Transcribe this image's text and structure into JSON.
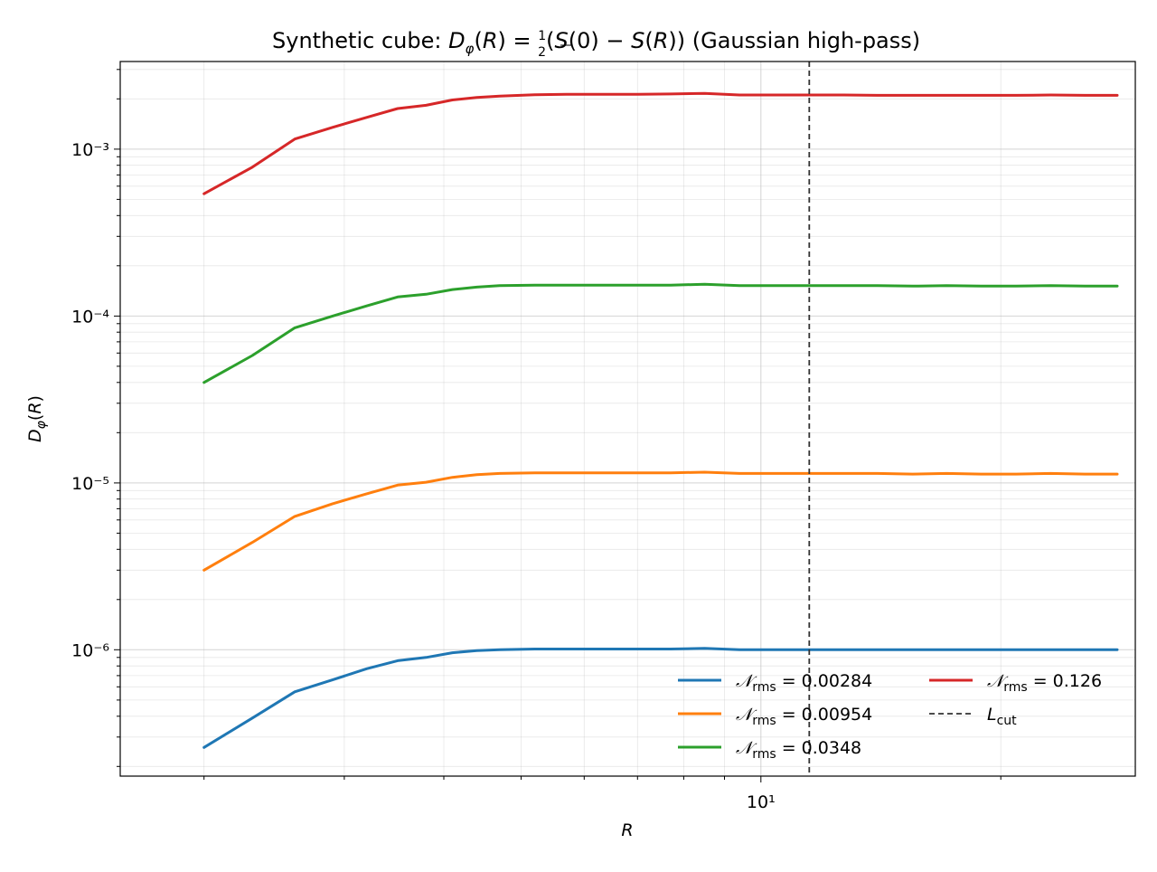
{
  "chart_data": {
    "type": "line",
    "title": "Synthetic cube: D_φ(R) = ½(S(0) − S(R)) (Gaussian high-pass)",
    "xlabel": "R",
    "ylabel": "D_φ(R)",
    "x_scale": "log",
    "y_scale": "log",
    "xlim": [
      1.57,
      29.5
    ],
    "ylim": [
      1.75e-07,
      0.00335
    ],
    "grid": true,
    "legend_position": "lower-right",
    "x_tick_labels": [
      "10¹"
    ],
    "y_tick_labels": [
      "10⁻⁶",
      "10⁻⁵",
      "10⁻⁴",
      "10⁻³"
    ],
    "x": [
      2.0,
      2.3,
      2.6,
      2.9,
      3.2,
      3.5,
      3.8,
      4.1,
      4.4,
      4.7,
      5.2,
      5.7,
      6.3,
      7.0,
      7.7,
      8.5,
      9.4,
      10.4,
      11.5,
      12.7,
      14.0,
      15.5,
      17.1,
      18.9,
      20.9,
      23.1,
      25.5,
      28.0
    ],
    "series": [
      {
        "name": "𝒩_rms = 0.00284",
        "color": "#1f77b4",
        "values": [
          2.6e-07,
          3.9e-07,
          5.6e-07,
          6.6e-07,
          7.7e-07,
          8.6e-07,
          9e-07,
          9.6e-07,
          9.9e-07,
          1e-06,
          1.01e-06,
          1.01e-06,
          1.01e-06,
          1.01e-06,
          1.01e-06,
          1.02e-06,
          1e-06,
          1e-06,
          1e-06,
          1e-06,
          1e-06,
          1e-06,
          1e-06,
          1e-06,
          1e-06,
          1e-06,
          1e-06,
          1e-06
        ]
      },
      {
        "name": "𝒩_rms = 0.00954",
        "color": "#ff7f0e",
        "values": [
          3e-06,
          4.4e-06,
          6.3e-06,
          7.5e-06,
          8.6e-06,
          9.7e-06,
          1.01e-05,
          1.08e-05,
          1.12e-05,
          1.14e-05,
          1.15e-05,
          1.15e-05,
          1.15e-05,
          1.15e-05,
          1.15e-05,
          1.16e-05,
          1.14e-05,
          1.14e-05,
          1.14e-05,
          1.14e-05,
          1.14e-05,
          1.13e-05,
          1.14e-05,
          1.13e-05,
          1.13e-05,
          1.14e-05,
          1.13e-05,
          1.13e-05
        ]
      },
      {
        "name": "𝒩_rms = 0.0348",
        "color": "#2ca02c",
        "values": [
          4e-05,
          5.8e-05,
          8.5e-05,
          0.0001,
          0.000115,
          0.00013,
          0.000135,
          0.000144,
          0.000149,
          0.000152,
          0.000153,
          0.000153,
          0.000153,
          0.000153,
          0.000153,
          0.000155,
          0.000152,
          0.000152,
          0.000152,
          0.000152,
          0.000152,
          0.000151,
          0.000152,
          0.000151,
          0.000151,
          0.000152,
          0.000151,
          0.000151
        ]
      },
      {
        "name": "𝒩_rms = 0.126",
        "color": "#d62728",
        "values": [
          0.00054,
          0.00078,
          0.00115,
          0.00135,
          0.00155,
          0.00175,
          0.00183,
          0.00197,
          0.00204,
          0.00208,
          0.00212,
          0.00213,
          0.00213,
          0.00213,
          0.00214,
          0.00216,
          0.00211,
          0.00211,
          0.00211,
          0.00211,
          0.0021,
          0.0021,
          0.0021,
          0.0021,
          0.0021,
          0.00211,
          0.0021,
          0.0021
        ]
      }
    ],
    "vertical_line": {
      "name": "L_cut",
      "x": 11.5,
      "color": "#333333",
      "style": "dashed"
    }
  }
}
